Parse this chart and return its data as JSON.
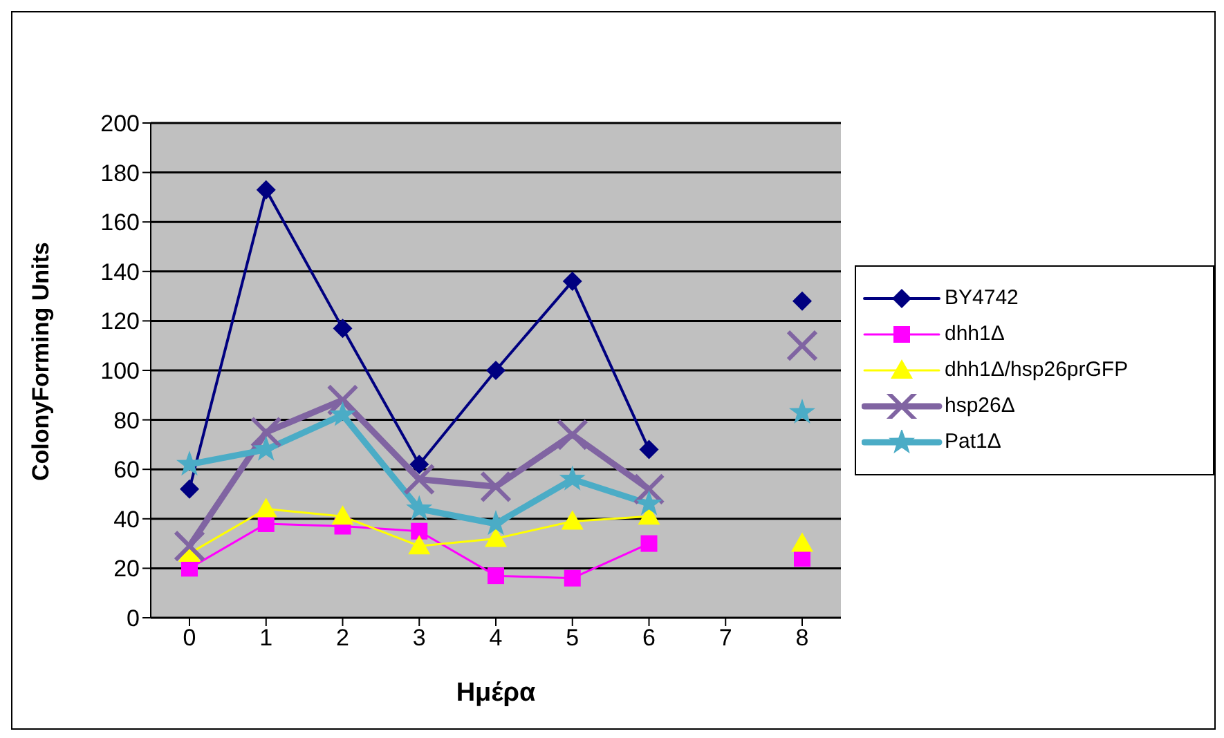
{
  "chart_data": {
    "type": "line",
    "xlabel": "Ημέρα",
    "ylabel": "ColonyForming Units",
    "categories": [
      "0",
      "1",
      "2",
      "3",
      "4",
      "5",
      "6",
      "7",
      "8"
    ],
    "series": [
      {
        "name": "BY4742",
        "color": "#000080",
        "marker": "diamond",
        "values": [
          52,
          173,
          117,
          62,
          100,
          136,
          68,
          null,
          128
        ]
      },
      {
        "name": "dhh1Δ",
        "color": "#ff00ff",
        "marker": "square",
        "values": [
          20,
          38,
          37,
          35,
          17,
          16,
          30,
          null,
          24
        ]
      },
      {
        "name": "dhh1Δ/hsp26prGFP",
        "color": "#ffff00",
        "marker": "triangle",
        "values": [
          26,
          44,
          41,
          29,
          32,
          39,
          41,
          null,
          30
        ]
      },
      {
        "name": "hsp26Δ",
        "color": "#8064a2",
        "marker": "cross",
        "values": [
          29,
          75,
          88,
          56,
          53,
          74,
          52,
          null,
          110
        ]
      },
      {
        "name": "Pat1Δ",
        "color": "#4bacc6",
        "marker": "star",
        "values": [
          62,
          68,
          82,
          44,
          38,
          56,
          46,
          null,
          83
        ]
      }
    ],
    "ylim": [
      0,
      200
    ],
    "yticks": [
      0,
      20,
      40,
      60,
      80,
      100,
      120,
      140,
      160,
      180,
      200
    ],
    "grid": "y",
    "legend": "right"
  }
}
